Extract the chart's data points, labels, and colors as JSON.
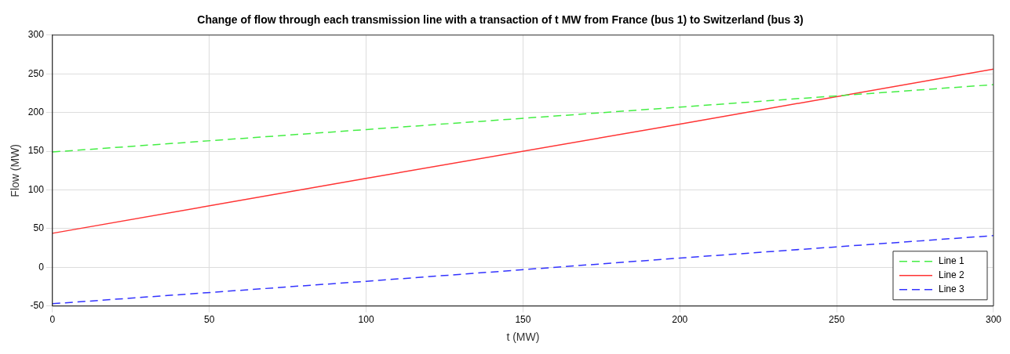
{
  "chart_data": {
    "type": "line",
    "title": "Change of flow through each transmission line with a transaction of t MW from France (bus 1) to Switzerland (bus 3)",
    "xlabel": "t (MW)",
    "ylabel": "Flow (MW)",
    "xlim": [
      0,
      300
    ],
    "xticks": [
      0,
      50,
      100,
      150,
      200,
      250,
      300
    ],
    "ylim": [
      -50,
      300
    ],
    "yticks": [
      -50,
      0,
      50,
      100,
      150,
      200,
      250,
      300
    ],
    "grid": true,
    "legend": "bottom right",
    "marker": "none",
    "series": [
      {
        "name": "Line 1",
        "color": "#44ee44",
        "line_style": "dashed",
        "x": [
          0,
          100,
          200,
          300
        ],
        "values": [
          149,
          178,
          207,
          236
        ]
      },
      {
        "name": "Line 2",
        "color": "#ff3333",
        "line_style": "solid",
        "x": [
          0,
          100,
          200,
          300
        ],
        "values": [
          44,
          115,
          185,
          256
        ]
      },
      {
        "name": "Line 3",
        "color": "#3333ff",
        "line_style": "dashed",
        "x": [
          0,
          100,
          200,
          300
        ],
        "values": [
          -47,
          -18,
          12,
          41
        ]
      }
    ]
  }
}
